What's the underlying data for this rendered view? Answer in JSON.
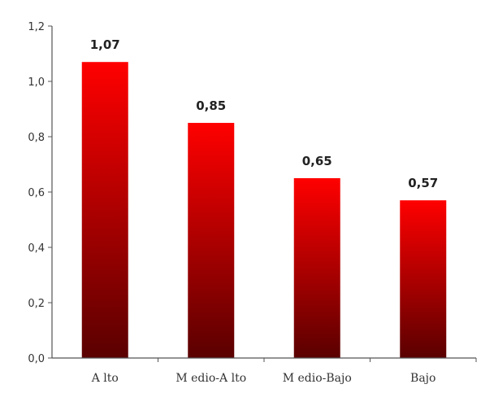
{
  "chart_data": {
    "type": "bar",
    "categories": [
      "A lto",
      "M edio-A lto",
      "M edio-Bajo",
      "Bajo"
    ],
    "values": [
      1.07,
      0.85,
      0.65,
      0.57
    ],
    "data_labels": [
      "1,07",
      "0,85",
      "0,65",
      "0,57"
    ],
    "y_ticks": [
      "0,0",
      "0,2",
      "0,4",
      "0,6",
      "0,8",
      "1,0",
      "1,2"
    ],
    "ylim": [
      0,
      1.2
    ],
    "title": "",
    "xlabel": "",
    "ylabel": "",
    "grid": false,
    "legend": "none",
    "bar_colors": {
      "top": "#ff0000",
      "bottom": "#5a0000"
    },
    "axis_color": "#555555"
  }
}
